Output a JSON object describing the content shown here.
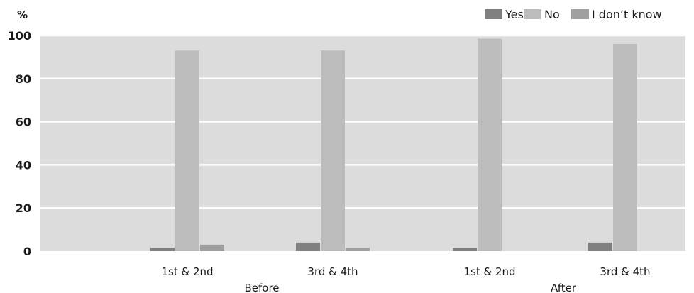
{
  "chart_data": {
    "type": "bar",
    "title": "",
    "ylabel": "%",
    "xlabel": "",
    "ylim": [
      0,
      100
    ],
    "yticks": [
      0,
      20,
      40,
      60,
      80,
      100
    ],
    "groups": [
      {
        "label": "Before",
        "categories": [
          "1st & 2nd",
          "3rd & 4th"
        ]
      },
      {
        "label": "After",
        "categories": [
          "1st & 2nd",
          "3rd & 4th"
        ]
      }
    ],
    "categories": [
      "1st & 2nd",
      "3rd & 4th",
      "1st & 2nd",
      "3rd & 4th"
    ],
    "series": [
      {
        "name": "Yes",
        "values": [
          1.5,
          4,
          1.5,
          4
        ],
        "color": "#808080"
      },
      {
        "name": "No",
        "values": [
          93,
          93,
          98.5,
          96
        ],
        "color": "#bcbcbc"
      },
      {
        "name": "I don’t know",
        "values": [
          3,
          1.5,
          0,
          0
        ],
        "color": "#9f9f9f"
      }
    ],
    "legend_position": "top-right",
    "grid": true,
    "plot_background": "#dcdcdc",
    "grid_color": "#ffffff"
  }
}
